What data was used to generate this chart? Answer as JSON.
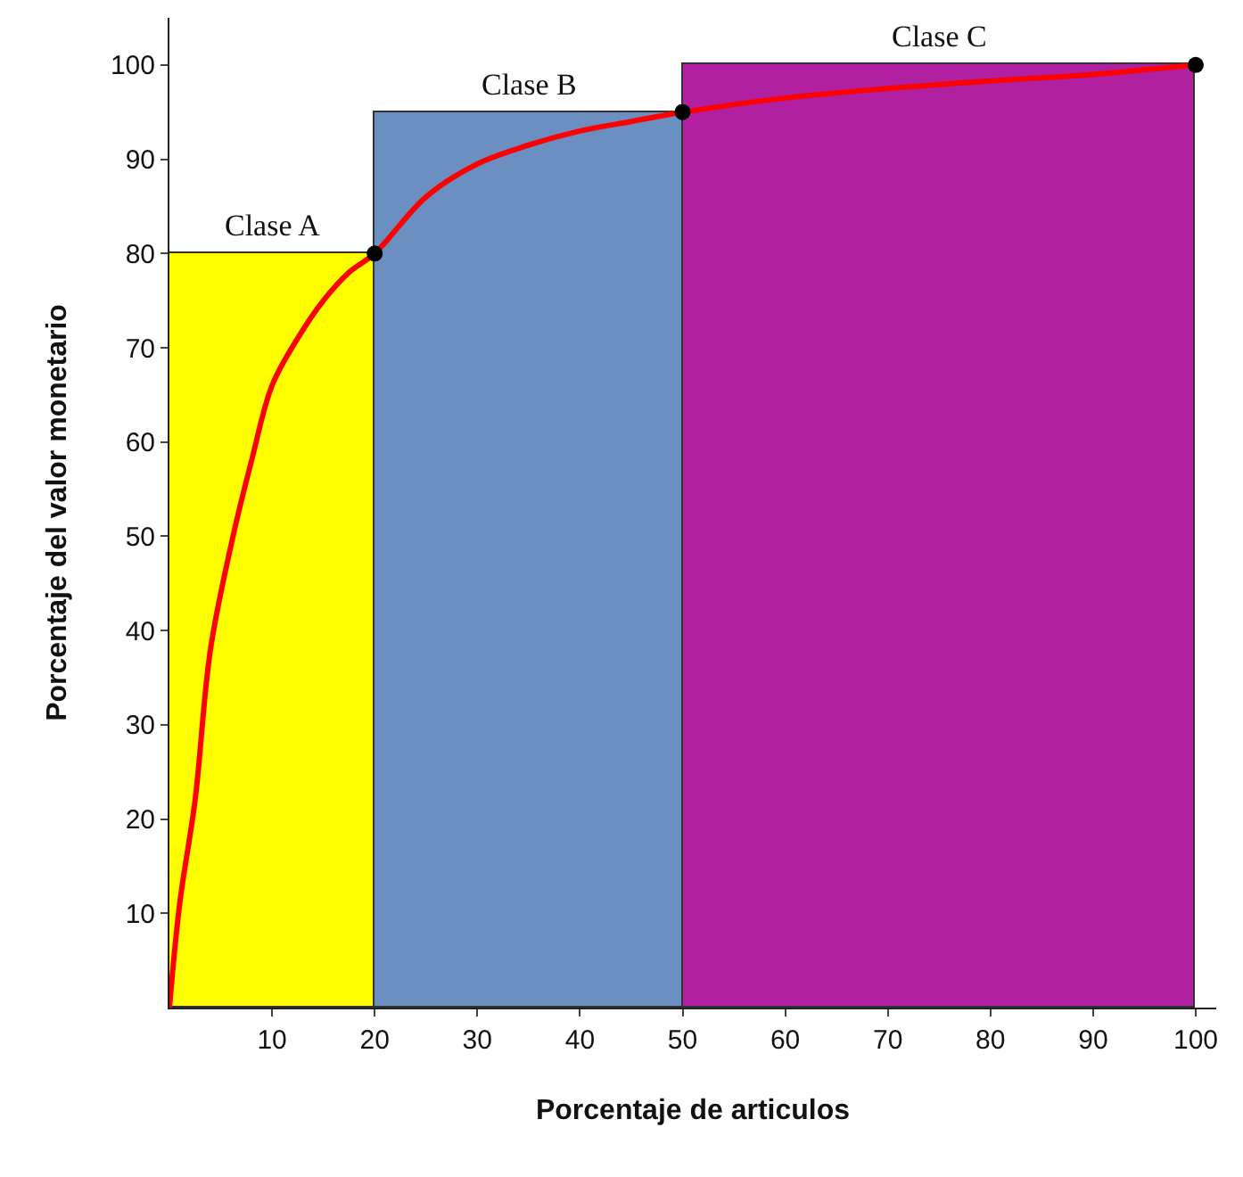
{
  "chart_data": {
    "type": "histogram",
    "xlabel": "Porcentaje de articulos",
    "ylabel": "Porcentaje del valor monetario",
    "bins": [
      0,
      20,
      50,
      100
    ],
    "values": [
      80,
      95,
      100
    ],
    "colors": [
      "#ffff00",
      "#6a8fc0",
      "#b020a0"
    ],
    "series": [
      {
        "type": "line",
        "color": "#ff0000",
        "marker": "none",
        "x": [
          0,
          1,
          2.5,
          4,
          6.2,
          8,
          10,
          12.5,
          15,
          17.5,
          20,
          25,
          30,
          35,
          40,
          45,
          50,
          60,
          70,
          80,
          90,
          100
        ],
        "values": [
          0,
          11,
          22,
          38,
          50,
          58,
          66,
          71,
          75,
          78,
          80,
          86,
          89.5,
          91.5,
          93,
          94,
          95,
          96.5,
          97.5,
          98.3,
          99,
          100
        ]
      },
      {
        "type": "scatter",
        "color": "#000000",
        "marker": "circle",
        "x": [
          20,
          50,
          100
        ],
        "values": [
          80,
          95,
          100
        ]
      }
    ],
    "annotations": [
      {
        "text": "Clase A",
        "x": 10,
        "y": 80
      },
      {
        "text": "Clase B",
        "x": 35,
        "y": 95
      },
      {
        "text": "Clase C",
        "x": 75,
        "y": 100
      }
    ],
    "xlim": [
      0,
      102
    ],
    "ylim": [
      0,
      105
    ],
    "xticks": [
      10,
      20,
      30,
      40,
      50,
      60,
      70,
      80,
      90,
      100
    ],
    "yticks": [
      10,
      20,
      30,
      40,
      50,
      60,
      70,
      80,
      90,
      100
    ]
  }
}
